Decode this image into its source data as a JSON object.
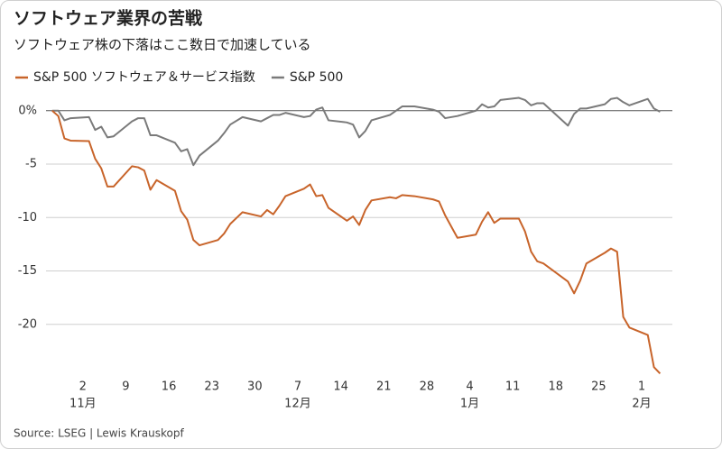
{
  "chart_data": {
    "type": "line",
    "title": "ソフトウェア業界の苦戦",
    "subtitle": "ソフトウェア株の下落はここ数日で加速している",
    "source": "Source: LSEG | Lewis Krauskopf",
    "x": [
      "10-28",
      "10-29",
      "10-30",
      "10-31",
      "11-03",
      "11-04",
      "11-05",
      "11-06",
      "11-07",
      "11-10",
      "11-11",
      "11-12",
      "11-13",
      "11-14",
      "11-17",
      "11-18",
      "11-19",
      "11-20",
      "11-21",
      "11-24",
      "11-25",
      "11-26",
      "11-28",
      "12-01",
      "12-02",
      "12-03",
      "12-04",
      "12-05",
      "12-08",
      "12-09",
      "12-10",
      "12-11",
      "12-12",
      "12-15",
      "12-16",
      "12-17",
      "12-18",
      "12-19",
      "12-22",
      "12-23",
      "12-24",
      "12-26",
      "12-29",
      "12-30",
      "12-31",
      "01-02",
      "01-05",
      "01-06",
      "01-07",
      "01-08",
      "01-09",
      "01-12",
      "01-13",
      "01-14",
      "01-15",
      "01-16",
      "01-20",
      "01-21",
      "01-22",
      "01-23",
      "01-26",
      "01-27",
      "01-28",
      "01-29",
      "01-30",
      "02-02",
      "02-03",
      "02-04"
    ],
    "series": [
      {
        "name": "S&P 500 ソフトウェア＆サービス指数",
        "color": "#c8642a",
        "values": [
          0,
          -0.5,
          -2.6,
          -2.8,
          -2.85,
          -4.5,
          -5.4,
          -7.1,
          -7.1,
          -5.2,
          -5.3,
          -5.6,
          -7.4,
          -6.5,
          -7.5,
          -9.4,
          -10.2,
          -12.1,
          -12.6,
          -12.1,
          -11.5,
          -10.6,
          -9.5,
          -9.9,
          -9.3,
          -9.7,
          -8.9,
          -8.0,
          -7.3,
          -6.9,
          -8.0,
          -7.9,
          -9.1,
          -10.3,
          -9.9,
          -10.7,
          -9.3,
          -8.4,
          -8.1,
          -8.2,
          -7.9,
          -8.0,
          -8.3,
          -8.5,
          -9.8,
          -11.9,
          -11.6,
          -10.4,
          -9.5,
          -10.5,
          -10.1,
          -10.1,
          -11.3,
          -13.2,
          -14.1,
          -14.3,
          -16.0,
          -17.1,
          -15.9,
          -14.3,
          -13.3,
          -12.9,
          -13.2,
          -19.3,
          -20.3,
          -21.0,
          -24.0,
          -24.6
        ]
      },
      {
        "name": "S&P 500",
        "color": "#7a7a7a",
        "values": [
          0,
          0,
          -0.9,
          -0.7,
          -0.6,
          -1.8,
          -1.5,
          -2.5,
          -2.4,
          -1.0,
          -0.7,
          -0.7,
          -2.3,
          -2.3,
          -3.0,
          -3.8,
          -3.6,
          -5.1,
          -4.2,
          -2.8,
          -2.1,
          -1.3,
          -0.6,
          -1.0,
          -0.7,
          -0.4,
          -0.4,
          -0.2,
          -0.6,
          -0.5,
          0.1,
          0.3,
          -0.9,
          -1.1,
          -1.3,
          -2.5,
          -1.9,
          -0.9,
          -0.4,
          0.0,
          0.4,
          0.4,
          0.1,
          -0.1,
          -0.7,
          -0.5,
          0.0,
          0.6,
          0.3,
          0.4,
          1.0,
          1.2,
          1.0,
          0.5,
          0.7,
          0.7,
          -1.4,
          -0.3,
          0.2,
          0.2,
          0.6,
          1.1,
          1.2,
          0.8,
          0.5,
          1.1,
          0.2,
          -0.1
        ]
      }
    ],
    "xlim": [
      "10-27",
      "02-06"
    ],
    "xticks": [
      {
        "value": "11-02",
        "label": "2"
      },
      {
        "value": "11-09",
        "label": "9"
      },
      {
        "value": "11-16",
        "label": "16"
      },
      {
        "value": "11-23",
        "label": "23"
      },
      {
        "value": "11-30",
        "label": "30"
      },
      {
        "value": "12-07",
        "label": "7"
      },
      {
        "value": "12-14",
        "label": "14"
      },
      {
        "value": "12-21",
        "label": "21"
      },
      {
        "value": "12-28",
        "label": "28"
      },
      {
        "value": "01-04",
        "label": "4"
      },
      {
        "value": "01-11",
        "label": "11"
      },
      {
        "value": "01-18",
        "label": "18"
      },
      {
        "value": "01-25",
        "label": "25"
      },
      {
        "value": "02-01",
        "label": "1"
      }
    ],
    "month_labels": [
      {
        "value": "11-02",
        "label": "11月"
      },
      {
        "value": "12-07",
        "label": "12月"
      },
      {
        "value": "01-04",
        "label": "1月"
      },
      {
        "value": "02-01",
        "label": "2月"
      }
    ],
    "ylim": [
      -25,
      1.5
    ],
    "yticks": [
      {
        "value": 0,
        "label": "0%"
      },
      -5,
      -10,
      -15,
      -20
    ],
    "grid": true
  }
}
